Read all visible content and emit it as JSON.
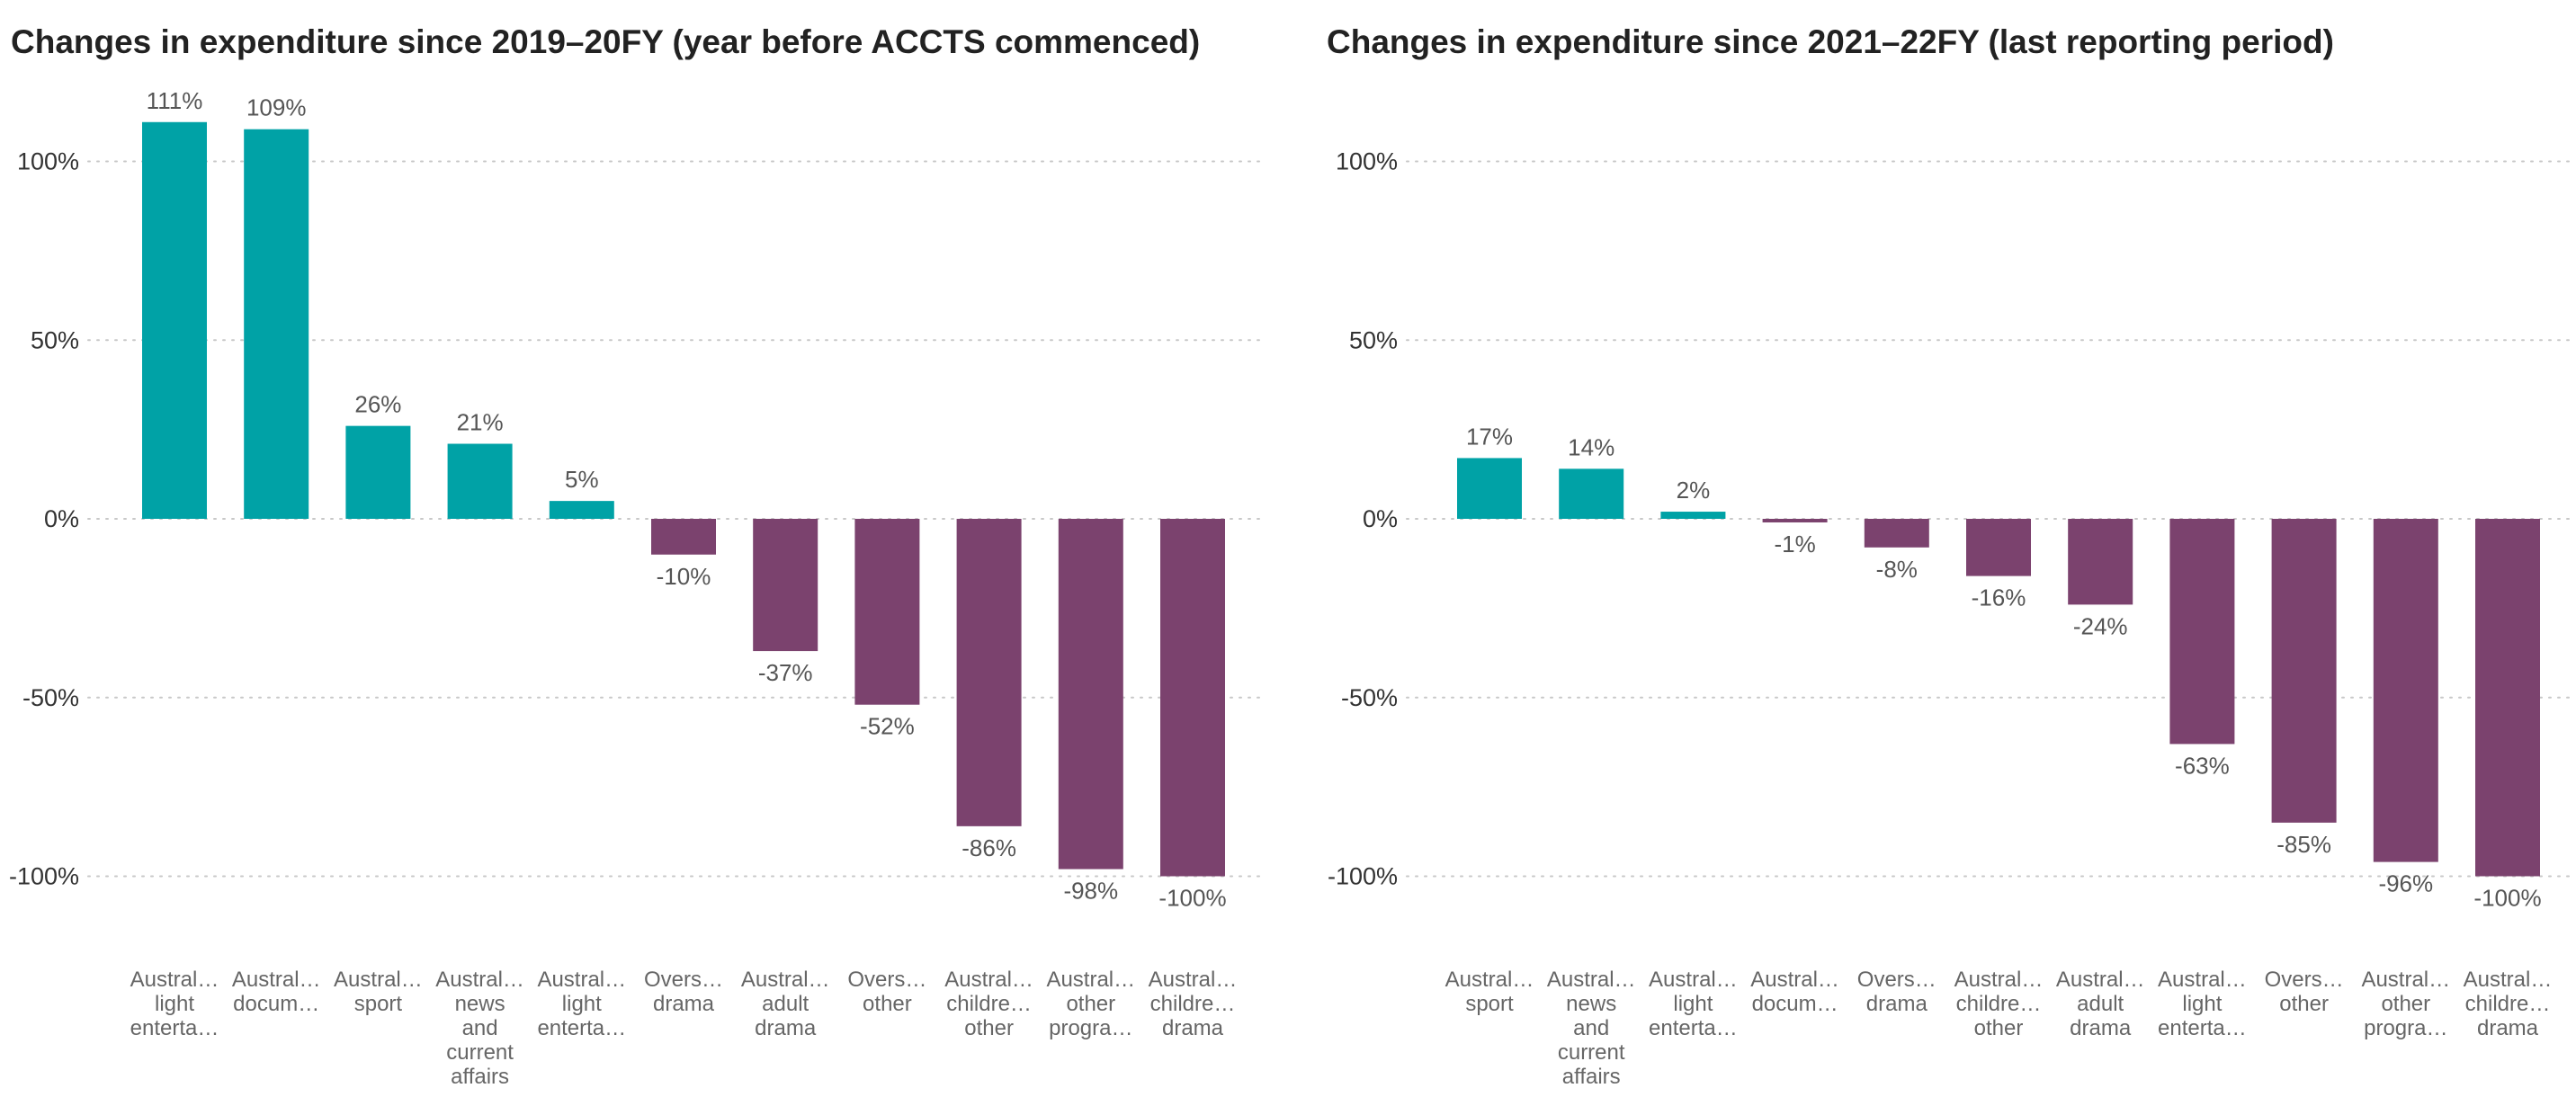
{
  "colors": {
    "positive": "#00a2a6",
    "negative": "#7b426e",
    "grid": "#c8c8c8",
    "tick": "#333333",
    "data_label": "#555555",
    "category": "#666666"
  },
  "chart_data": [
    {
      "type": "bar",
      "title": "Changes in expenditure since 2019–20FY (year before ACCTS commenced)",
      "xlabel": "",
      "ylabel": "",
      "ylim": [
        -120,
        120
      ],
      "yticks": [
        100,
        50,
        0,
        -50,
        -100
      ],
      "ytick_labels": [
        "100%",
        "50%",
        "0%",
        "-50%",
        "-100%"
      ],
      "grid": "horizontal dotted",
      "categories": [
        [
          "Austral…",
          "light",
          "enterta…"
        ],
        [
          "Austral…",
          "docum…"
        ],
        [
          "Austral…",
          "sport"
        ],
        [
          "Austral…",
          "news",
          "and",
          "current",
          "affairs"
        ],
        [
          "Austral…",
          "light",
          "enterta…"
        ],
        [
          "Overs…",
          "drama"
        ],
        [
          "Austral…",
          "adult",
          "drama"
        ],
        [
          "Overs…",
          "other"
        ],
        [
          "Austral…",
          "childre…",
          "other"
        ],
        [
          "Austral…",
          "other",
          "progra…"
        ],
        [
          "Austral…",
          "childre…",
          "drama"
        ]
      ],
      "values": [
        111,
        109,
        26,
        21,
        5,
        -10,
        -37,
        -52,
        -86,
        -98,
        -100
      ],
      "value_labels": [
        "111%",
        "109%",
        "26%",
        "21%",
        "5%",
        "-10%",
        "-37%",
        "-52%",
        "-86%",
        "-98%",
        "-100%"
      ]
    },
    {
      "type": "bar",
      "title": "Changes in expenditure since 2021–22FY (last reporting period)",
      "xlabel": "",
      "ylabel": "",
      "ylim": [
        -120,
        120
      ],
      "yticks": [
        100,
        50,
        0,
        -50,
        -100
      ],
      "ytick_labels": [
        "100%",
        "50%",
        "0%",
        "-50%",
        "-100%"
      ],
      "grid": "horizontal dotted",
      "categories": [
        [
          "Austral…",
          "sport"
        ],
        [
          "Austral…",
          "news",
          "and",
          "current",
          "affairs"
        ],
        [
          "Austral…",
          "light",
          "enterta…"
        ],
        [
          "Austral…",
          "docum…"
        ],
        [
          "Overs…",
          "drama"
        ],
        [
          "Austral…",
          "childre…",
          "other"
        ],
        [
          "Austral…",
          "adult",
          "drama"
        ],
        [
          "Austral…",
          "light",
          "enterta…"
        ],
        [
          "Overs…",
          "other"
        ],
        [
          "Austral…",
          "other",
          "progra…"
        ],
        [
          "Austral…",
          "childre…",
          "drama"
        ]
      ],
      "values": [
        17,
        14,
        2,
        -1,
        -8,
        -16,
        -24,
        -63,
        -85,
        -96,
        -100
      ],
      "value_labels": [
        "17%",
        "14%",
        "2%",
        "-1%",
        "-8%",
        "-16%",
        "-24%",
        "-63%",
        "-85%",
        "-96%",
        "-100%"
      ]
    }
  ]
}
